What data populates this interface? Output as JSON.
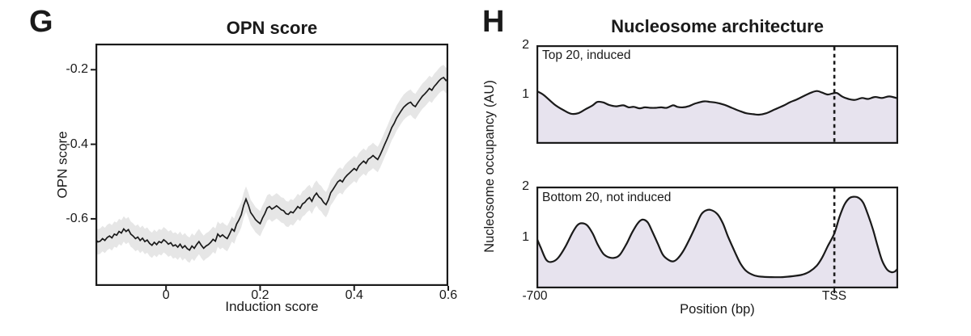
{
  "panel_labels": {
    "g": "G",
    "h": "H"
  },
  "colors": {
    "ink": "#1a1a1a",
    "confidence_band": "#e6e6e6",
    "occupancy_fill": "#e7e3ee",
    "background": "#ffffff"
  },
  "chart_data": [
    {
      "id": "opn-score",
      "type": "line",
      "title": "OPN score",
      "xlabel": "Induction score",
      "ylabel": "OPN score",
      "xlim": [
        -0.15,
        0.6
      ],
      "ylim": [
        -0.78,
        -0.13
      ],
      "xticks": [
        0,
        0.2,
        0.4,
        0.6
      ],
      "xtick_labels": [
        "0",
        "0.2",
        "0.4",
        "0.6"
      ],
      "yticks": [
        -0.2,
        -0.4,
        -0.6
      ],
      "ytick_labels": [
        "-0.2",
        "-0.4",
        "-0.6"
      ],
      "x_start": -0.15,
      "x_step": 0.005,
      "band_halfwidth": 0.034,
      "y": [
        -0.655,
        -0.662,
        -0.66,
        -0.653,
        -0.658,
        -0.65,
        -0.646,
        -0.651,
        -0.641,
        -0.644,
        -0.634,
        -0.638,
        -0.627,
        -0.634,
        -0.629,
        -0.641,
        -0.646,
        -0.653,
        -0.649,
        -0.658,
        -0.652,
        -0.661,
        -0.657,
        -0.666,
        -0.671,
        -0.663,
        -0.669,
        -0.661,
        -0.664,
        -0.656,
        -0.661,
        -0.668,
        -0.664,
        -0.673,
        -0.67,
        -0.676,
        -0.668,
        -0.678,
        -0.672,
        -0.68,
        -0.684,
        -0.673,
        -0.679,
        -0.669,
        -0.661,
        -0.671,
        -0.679,
        -0.673,
        -0.669,
        -0.663,
        -0.655,
        -0.66,
        -0.641,
        -0.648,
        -0.643,
        -0.649,
        -0.653,
        -0.641,
        -0.627,
        -0.633,
        -0.614,
        -0.603,
        -0.589,
        -0.564,
        -0.547,
        -0.563,
        -0.583,
        -0.592,
        -0.602,
        -0.608,
        -0.613,
        -0.598,
        -0.586,
        -0.571,
        -0.567,
        -0.574,
        -0.57,
        -0.565,
        -0.57,
        -0.576,
        -0.578,
        -0.586,
        -0.588,
        -0.581,
        -0.584,
        -0.576,
        -0.567,
        -0.572,
        -0.56,
        -0.556,
        -0.548,
        -0.543,
        -0.553,
        -0.539,
        -0.531,
        -0.541,
        -0.546,
        -0.556,
        -0.562,
        -0.549,
        -0.53,
        -0.521,
        -0.511,
        -0.501,
        -0.496,
        -0.501,
        -0.49,
        -0.483,
        -0.477,
        -0.471,
        -0.465,
        -0.47,
        -0.458,
        -0.451,
        -0.445,
        -0.451,
        -0.44,
        -0.436,
        -0.43,
        -0.436,
        -0.441,
        -0.429,
        -0.415,
        -0.4,
        -0.386,
        -0.371,
        -0.355,
        -0.344,
        -0.33,
        -0.32,
        -0.31,
        -0.301,
        -0.295,
        -0.29,
        -0.287,
        -0.295,
        -0.299,
        -0.289,
        -0.28,
        -0.271,
        -0.265,
        -0.258,
        -0.25,
        -0.255,
        -0.245,
        -0.238,
        -0.23,
        -0.224,
        -0.221,
        -0.229,
        -0.224
      ]
    },
    {
      "id": "nucleosome-top",
      "type": "area",
      "title": "Nucleosome architecture",
      "series_label": "Top 20, induced",
      "ylabel": "Nucleosome occupancy (AU)",
      "xlim": [
        -700,
        150
      ],
      "ylim": [
        0,
        2
      ],
      "yticks": [
        1,
        2
      ],
      "ytick_labels": [
        "1",
        "2"
      ],
      "tss_x": 0,
      "x": [
        -700,
        -683,
        -658,
        -636,
        -619,
        -602,
        -585,
        -568,
        -557,
        -543,
        -530,
        -513,
        -496,
        -483,
        -471,
        -458,
        -445,
        -432,
        -420,
        -407,
        -394,
        -379,
        -369,
        -356,
        -343,
        -326,
        -306,
        -292,
        -275,
        -258,
        -241,
        -224,
        -207,
        -190,
        -177,
        -160,
        -139,
        -118,
        -105,
        -88,
        -67,
        -54,
        -41,
        -29,
        -16,
        -5,
        6,
        18,
        33,
        48,
        65,
        79,
        95,
        112,
        129,
        150
      ],
      "y": [
        1.07,
        0.99,
        0.8,
        0.68,
        0.61,
        0.62,
        0.7,
        0.78,
        0.85,
        0.84,
        0.79,
        0.76,
        0.78,
        0.74,
        0.75,
        0.72,
        0.74,
        0.73,
        0.73,
        0.74,
        0.73,
        0.78,
        0.75,
        0.74,
        0.76,
        0.82,
        0.86,
        0.85,
        0.83,
        0.79,
        0.73,
        0.67,
        0.62,
        0.6,
        0.59,
        0.62,
        0.7,
        0.78,
        0.84,
        0.9,
        0.99,
        1.04,
        1.07,
        1.04,
        1.0,
        1.02,
        1.03,
        0.96,
        0.91,
        0.89,
        0.93,
        0.91,
        0.95,
        0.93,
        0.96,
        0.92
      ]
    },
    {
      "id": "nucleosome-bottom",
      "type": "area",
      "series_label": "Bottom 20, not induced",
      "xlabel": "Position (bp)",
      "xlim": [
        -700,
        150
      ],
      "ylim": [
        0,
        2
      ],
      "yticks": [
        1,
        2
      ],
      "ytick_labels": [
        "1",
        "2"
      ],
      "xticks": [
        -700,
        0
      ],
      "xtick_labels": [
        "-700",
        "TSS"
      ],
      "tss_x": 0,
      "x": [
        -700,
        -690,
        -677,
        -664,
        -649,
        -632,
        -615,
        -604,
        -594,
        -581,
        -568,
        -556,
        -543,
        -530,
        -517,
        -504,
        -488,
        -475,
        -462,
        -451,
        -439,
        -428,
        -415,
        -403,
        -390,
        -379,
        -369,
        -356,
        -343,
        -326,
        -313,
        -302,
        -290,
        -275,
        -262,
        -250,
        -233,
        -220,
        -207,
        -190,
        -173,
        -148,
        -122,
        -97,
        -75,
        -58,
        -41,
        -29,
        -16,
        0,
        12,
        24,
        35,
        45,
        57,
        68,
        79,
        91,
        102,
        112,
        123,
        133,
        142,
        150
      ],
      "y": [
        1.0,
        0.8,
        0.56,
        0.52,
        0.6,
        0.82,
        1.1,
        1.24,
        1.28,
        1.24,
        1.08,
        0.86,
        0.68,
        0.61,
        0.6,
        0.66,
        0.88,
        1.1,
        1.28,
        1.35,
        1.3,
        1.12,
        0.88,
        0.66,
        0.56,
        0.53,
        0.58,
        0.72,
        0.92,
        1.22,
        1.45,
        1.53,
        1.54,
        1.46,
        1.28,
        1.02,
        0.7,
        0.48,
        0.34,
        0.26,
        0.23,
        0.22,
        0.22,
        0.24,
        0.27,
        0.33,
        0.45,
        0.6,
        0.82,
        1.08,
        1.4,
        1.65,
        1.77,
        1.8,
        1.78,
        1.68,
        1.45,
        1.15,
        0.82,
        0.55,
        0.38,
        0.32,
        0.33,
        0.4
      ]
    }
  ]
}
